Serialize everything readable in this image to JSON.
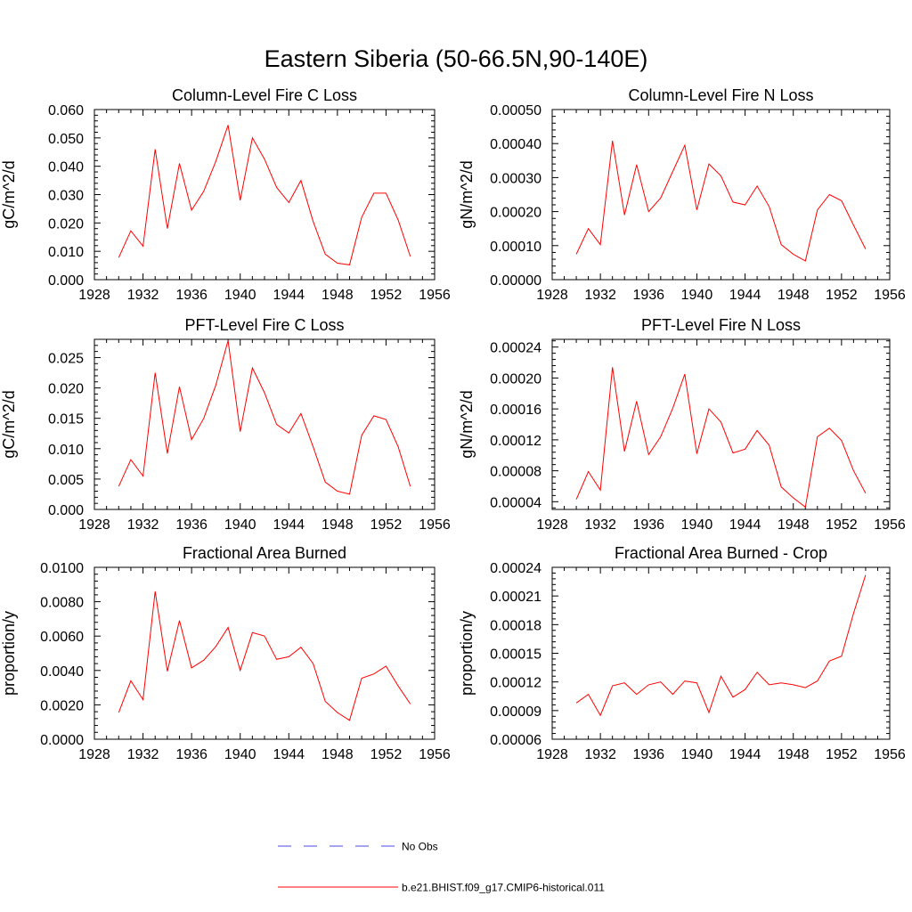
{
  "figure": {
    "title": "Eastern Siberia (50-66.5N,90-140E)"
  },
  "legend": [
    {
      "label": "No Obs",
      "color": "#4a4ae6",
      "dash": true
    },
    {
      "label": "b.e21.BHIST.f09_g17.CMIP6-historical.011",
      "color": "#ff0000",
      "dash": false
    }
  ],
  "chart_data": [
    {
      "type": "line",
      "title": "Column-Level Fire C Loss",
      "ylabel": "gC/m^2/d",
      "xlabel": "",
      "xlim": [
        1928,
        1956
      ],
      "x_ticks": [
        1928,
        1932,
        1936,
        1940,
        1944,
        1948,
        1952,
        1956
      ],
      "ylim": [
        0.0,
        0.06
      ],
      "y_ticks": [
        0.0,
        0.01,
        0.02,
        0.03,
        0.04,
        0.05,
        0.06
      ],
      "y_tick_labels": [
        "0.000",
        "0.010",
        "0.020",
        "0.030",
        "0.040",
        "0.050",
        "0.060"
      ],
      "series": [
        {
          "color": "#ff0000",
          "x": [
            1930,
            1931,
            1932,
            1933,
            1934,
            1935,
            1936,
            1937,
            1938,
            1939,
            1940,
            1941,
            1942,
            1943,
            1944,
            1945,
            1946,
            1947,
            1948,
            1949,
            1950,
            1951,
            1952,
            1953,
            1954
          ],
          "y": [
            0.0078,
            0.0172,
            0.0118,
            0.046,
            0.018,
            0.041,
            0.0245,
            0.0312,
            0.0418,
            0.0545,
            0.028,
            0.05,
            0.0425,
            0.0325,
            0.0272,
            0.035,
            0.0205,
            0.009,
            0.0058,
            0.0052,
            0.022,
            0.0305,
            0.0305,
            0.021,
            0.0082
          ]
        }
      ]
    },
    {
      "type": "line",
      "title": "Column-Level Fire N Loss",
      "ylabel": "gN/m^2/d",
      "xlabel": "",
      "xlim": [
        1928,
        1956
      ],
      "x_ticks": [
        1928,
        1932,
        1936,
        1940,
        1944,
        1948,
        1952,
        1956
      ],
      "ylim": [
        0.0,
        0.0005
      ],
      "y_ticks": [
        0.0,
        0.0001,
        0.0002,
        0.0003,
        0.0004,
        0.0005
      ],
      "y_tick_labels": [
        "0.00000",
        "0.00010",
        "0.00020",
        "0.00030",
        "0.00040",
        "0.00050"
      ],
      "series": [
        {
          "color": "#ff0000",
          "x": [
            1930,
            1931,
            1932,
            1933,
            1934,
            1935,
            1936,
            1937,
            1938,
            1939,
            1940,
            1941,
            1942,
            1943,
            1944,
            1945,
            1946,
            1947,
            1948,
            1949,
            1950,
            1951,
            1952,
            1953,
            1954
          ],
          "y": [
            7.5e-05,
            0.00015,
            0.000103,
            0.000408,
            0.00019,
            0.000338,
            0.0002,
            0.00024,
            0.000318,
            0.000395,
            0.000205,
            0.00034,
            0.000305,
            0.000228,
            0.00022,
            0.000275,
            0.000215,
            0.000103,
            7.5e-05,
            5.5e-05,
            0.000205,
            0.00025,
            0.000232,
            0.00016,
            9e-05
          ]
        }
      ]
    },
    {
      "type": "line",
      "title": "PFT-Level Fire C Loss",
      "ylabel": "gC/m^2/d",
      "xlabel": "",
      "xlim": [
        1928,
        1956
      ],
      "x_ticks": [
        1928,
        1932,
        1936,
        1940,
        1944,
        1948,
        1952,
        1956
      ],
      "ylim": [
        0.0,
        0.028
      ],
      "y_ticks": [
        0.0,
        0.005,
        0.01,
        0.015,
        0.02,
        0.025
      ],
      "y_tick_labels": [
        "0.000",
        "0.005",
        "0.010",
        "0.015",
        "0.020",
        "0.025"
      ],
      "series": [
        {
          "color": "#ff0000",
          "x": [
            1930,
            1931,
            1932,
            1933,
            1934,
            1935,
            1936,
            1937,
            1938,
            1939,
            1940,
            1941,
            1942,
            1943,
            1944,
            1945,
            1946,
            1947,
            1948,
            1949,
            1950,
            1951,
            1952,
            1953,
            1954
          ],
          "y": [
            0.0038,
            0.0082,
            0.0055,
            0.0225,
            0.0092,
            0.0202,
            0.0115,
            0.015,
            0.0205,
            0.0278,
            0.0128,
            0.0233,
            0.0192,
            0.014,
            0.0126,
            0.0158,
            0.0103,
            0.0045,
            0.003,
            0.0025,
            0.0122,
            0.0154,
            0.0148,
            0.0103,
            0.0038
          ]
        }
      ]
    },
    {
      "type": "line",
      "title": "PFT-Level Fire N Loss",
      "ylabel": "gN/m^2/d",
      "xlabel": "",
      "xlim": [
        1928,
        1956
      ],
      "x_ticks": [
        1928,
        1932,
        1936,
        1940,
        1944,
        1948,
        1952,
        1956
      ],
      "ylim": [
        3e-05,
        0.00025
      ],
      "y_ticks": [
        4e-05,
        8e-05,
        0.00012,
        0.00016,
        0.0002,
        0.00024
      ],
      "y_tick_labels": [
        "0.00004",
        "0.00008",
        "0.00012",
        "0.00016",
        "0.00020",
        "0.00024"
      ],
      "series": [
        {
          "color": "#ff0000",
          "x": [
            1930,
            1931,
            1932,
            1933,
            1934,
            1935,
            1936,
            1937,
            1938,
            1939,
            1940,
            1941,
            1942,
            1943,
            1944,
            1945,
            1946,
            1947,
            1948,
            1949,
            1950,
            1951,
            1952,
            1953,
            1954
          ],
          "y": [
            4.3e-05,
            7.9e-05,
            5.5e-05,
            0.000214,
            0.000105,
            0.00017,
            0.000101,
            0.000124,
            0.000161,
            0.000205,
            0.000102,
            0.00016,
            0.000143,
            0.000103,
            0.000108,
            0.000132,
            0.000113,
            5.9e-05,
            4.5e-05,
            3.3e-05,
            0.000124,
            0.000135,
            0.000119,
            8e-05,
            5.1e-05
          ]
        }
      ]
    },
    {
      "type": "line",
      "title": "Fractional Area Burned",
      "ylabel": "proportion/y",
      "xlabel": "",
      "xlim": [
        1928,
        1956
      ],
      "x_ticks": [
        1928,
        1932,
        1936,
        1940,
        1944,
        1948,
        1952,
        1956
      ],
      "ylim": [
        0.0,
        0.01
      ],
      "y_ticks": [
        0.0,
        0.002,
        0.004,
        0.006,
        0.008,
        0.01
      ],
      "y_tick_labels": [
        "0.0000",
        "0.0020",
        "0.0040",
        "0.0060",
        "0.0080",
        "0.0100"
      ],
      "series": [
        {
          "color": "#ff0000",
          "x": [
            1930,
            1931,
            1932,
            1933,
            1934,
            1935,
            1936,
            1937,
            1938,
            1939,
            1940,
            1941,
            1942,
            1943,
            1944,
            1945,
            1946,
            1947,
            1948,
            1949,
            1950,
            1951,
            1952,
            1953,
            1954
          ],
          "y": [
            0.00155,
            0.0034,
            0.0023,
            0.0086,
            0.00395,
            0.0069,
            0.00415,
            0.0046,
            0.0054,
            0.0065,
            0.004,
            0.0062,
            0.006,
            0.00465,
            0.0048,
            0.00535,
            0.0044,
            0.0022,
            0.00155,
            0.0011,
            0.00355,
            0.0038,
            0.00425,
            0.0031,
            0.00205
          ]
        }
      ]
    },
    {
      "type": "line",
      "title": "Fractional Area Burned - Crop",
      "ylabel": "proportion/y",
      "xlabel": "",
      "xlim": [
        1928,
        1956
      ],
      "x_ticks": [
        1928,
        1932,
        1936,
        1940,
        1944,
        1948,
        1952,
        1956
      ],
      "ylim": [
        6e-05,
        0.00024
      ],
      "y_ticks": [
        6e-05,
        9e-05,
        0.00012,
        0.00015,
        0.00018,
        0.00021,
        0.00024
      ],
      "y_tick_labels": [
        "0.00006",
        "0.00009",
        "0.00012",
        "0.00015",
        "0.00018",
        "0.00021",
        "0.00024"
      ],
      "series": [
        {
          "color": "#ff0000",
          "x": [
            1930,
            1931,
            1932,
            1933,
            1934,
            1935,
            1936,
            1937,
            1938,
            1939,
            1940,
            1941,
            1942,
            1943,
            1944,
            1945,
            1946,
            1947,
            1948,
            1949,
            1950,
            1951,
            1952,
            1953,
            1954
          ],
          "y": [
            9.8e-05,
            0.000107,
            8.5e-05,
            0.000116,
            0.000119,
            0.000107,
            0.000117,
            0.00012,
            0.000107,
            0.000121,
            0.000119,
            8.8e-05,
            0.000126,
            0.000104,
            0.000112,
            0.00013,
            0.000117,
            0.000119,
            0.000117,
            0.000114,
            0.000121,
            0.000142,
            0.000147,
            0.000192,
            0.000232
          ]
        }
      ]
    }
  ]
}
